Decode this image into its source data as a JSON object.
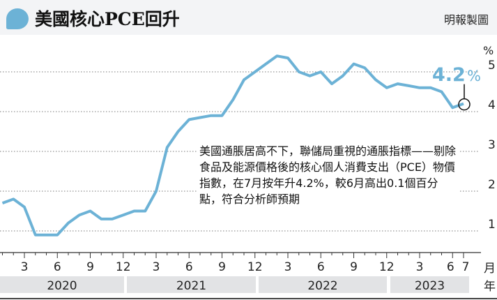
{
  "header": {
    "title": "美國核心PCE回升",
    "credit": "明報製圖"
  },
  "annotation": "美國通脹居高不下，聯儲局重視的通脹指標——剔除食品及能源價格後的核心個人消費支出（PCE）物價指數，在7月按年升4.2%，較6月高出0.1個百分點，符合分析師預期",
  "chart_data": {
    "type": "line",
    "title": "美國核心PCE回升",
    "ylabel": "%",
    "xlabel": "月 / 年",
    "ylim": [
      0.5,
      5.7
    ],
    "yticks": [
      1,
      2,
      3,
      4,
      5
    ],
    "grid": true,
    "line_color": "#6cb2d6",
    "x_month_ticks": [
      "3",
      "6",
      "9",
      "12",
      "3",
      "6",
      "9",
      "12",
      "3",
      "6",
      "9",
      "12",
      "3",
      "6",
      "7"
    ],
    "years": [
      "2020",
      "2021",
      "2022",
      "2023"
    ],
    "month_unit": "月",
    "year_unit": "年",
    "x": [
      "2020-01",
      "2020-02",
      "2020-03",
      "2020-04",
      "2020-05",
      "2020-06",
      "2020-07",
      "2020-08",
      "2020-09",
      "2020-10",
      "2020-11",
      "2020-12",
      "2021-01",
      "2021-02",
      "2021-03",
      "2021-04",
      "2021-05",
      "2021-06",
      "2021-07",
      "2021-08",
      "2021-09",
      "2021-10",
      "2021-11",
      "2021-12",
      "2022-01",
      "2022-02",
      "2022-03",
      "2022-04",
      "2022-05",
      "2022-06",
      "2022-07",
      "2022-08",
      "2022-09",
      "2022-10",
      "2022-11",
      "2022-12",
      "2023-01",
      "2023-02",
      "2023-03",
      "2023-04",
      "2023-05",
      "2023-06",
      "2023-07"
    ],
    "values": [
      1.7,
      1.8,
      1.6,
      0.9,
      0.9,
      0.9,
      1.2,
      1.4,
      1.5,
      1.3,
      1.3,
      1.4,
      1.5,
      1.5,
      2.0,
      3.1,
      3.5,
      3.8,
      3.85,
      3.9,
      3.9,
      4.3,
      4.8,
      5.0,
      5.2,
      5.4,
      5.35,
      5.0,
      4.9,
      5.0,
      4.7,
      4.9,
      5.2,
      5.1,
      4.8,
      4.6,
      4.7,
      4.65,
      4.6,
      4.6,
      4.5,
      4.1,
      4.2
    ],
    "highlight": {
      "label": "4.2",
      "unit": "%",
      "month": "2023-07"
    }
  }
}
